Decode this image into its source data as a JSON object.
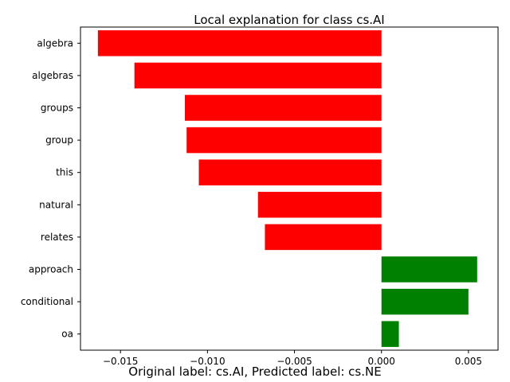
{
  "chart_data": {
    "type": "bar",
    "orientation": "horizontal",
    "title": "Local explanation for class cs.AI",
    "categories": [
      "algebra",
      "algebras",
      "groups",
      "group",
      "this",
      "natural",
      "relates",
      "approach",
      "conditional",
      "oa"
    ],
    "values": [
      -0.0163,
      -0.0142,
      -0.0113,
      -0.0112,
      -0.0105,
      -0.0071,
      -0.0067,
      0.0055,
      0.005,
      0.001
    ],
    "colors": {
      "negative": "#ff0000",
      "positive": "#008000"
    },
    "xlim": [
      -0.0173,
      0.0067
    ],
    "xticks": [
      -0.015,
      -0.01,
      -0.005,
      0.0,
      0.005
    ],
    "xtick_labels": [
      "−0.015",
      "−0.010",
      "−0.005",
      "0.000",
      "0.005"
    ],
    "xlabel": "",
    "ylabel": "",
    "grid": false
  },
  "caption": "Original label: cs.AI, Predicted label: cs.NE"
}
